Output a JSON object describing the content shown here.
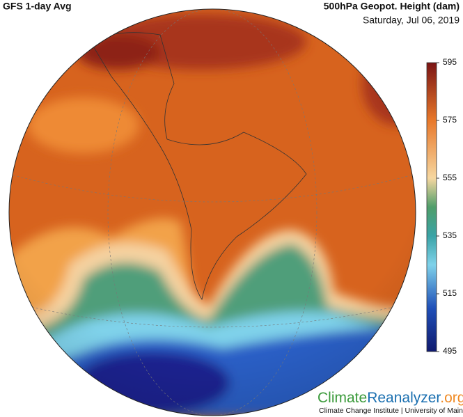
{
  "header": {
    "title": "GFS 1-day Avg",
    "variable": "500hPa Geopot. Height (dam)",
    "date": "Saturday, Jul 06, 2019"
  },
  "colorbar": {
    "range": [
      495,
      595
    ],
    "ticks": [
      595,
      575,
      555,
      535,
      515,
      495
    ]
  },
  "logo": {
    "part1": "Climate",
    "part2": "Reanalyzer",
    "part3": ".org",
    "subtitle": "Climate Change Institute | University of Maine"
  }
}
